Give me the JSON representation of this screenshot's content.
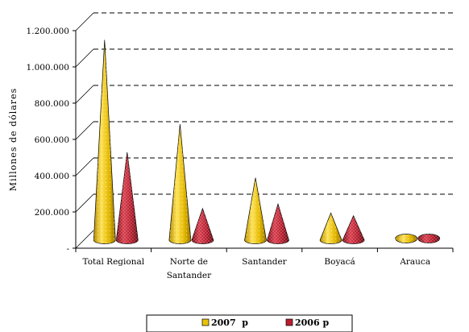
{
  "chart_data": {
    "type": "bar",
    "style": "3d-cone",
    "ylabel": "Millones de dólares",
    "ylim": [
      0,
      1200000
    ],
    "ytick_values": [
      0,
      200000,
      400000,
      600000,
      800000,
      1000000,
      1200000
    ],
    "ytick_labels": [
      "-",
      "200.000",
      "400.000",
      "600.000",
      "800.000",
      "1.000.000",
      "1.200.000"
    ],
    "grid": true,
    "legend_position": "bottom",
    "categories": [
      [
        "Total Regional"
      ],
      [
        "Norte de",
        "Santander"
      ],
      [
        "Santander"
      ],
      [
        "Boyacá"
      ],
      [
        "Arauca"
      ]
    ],
    "series": [
      {
        "name": "2007  p",
        "color": "#e9c30a",
        "values": [
          1100000,
          635000,
          340000,
          145000,
          10000
        ]
      },
      {
        "name": "2006 p",
        "color": "#b81e2e",
        "values": [
          480000,
          170000,
          195000,
          130000,
          10000
        ]
      }
    ]
  }
}
